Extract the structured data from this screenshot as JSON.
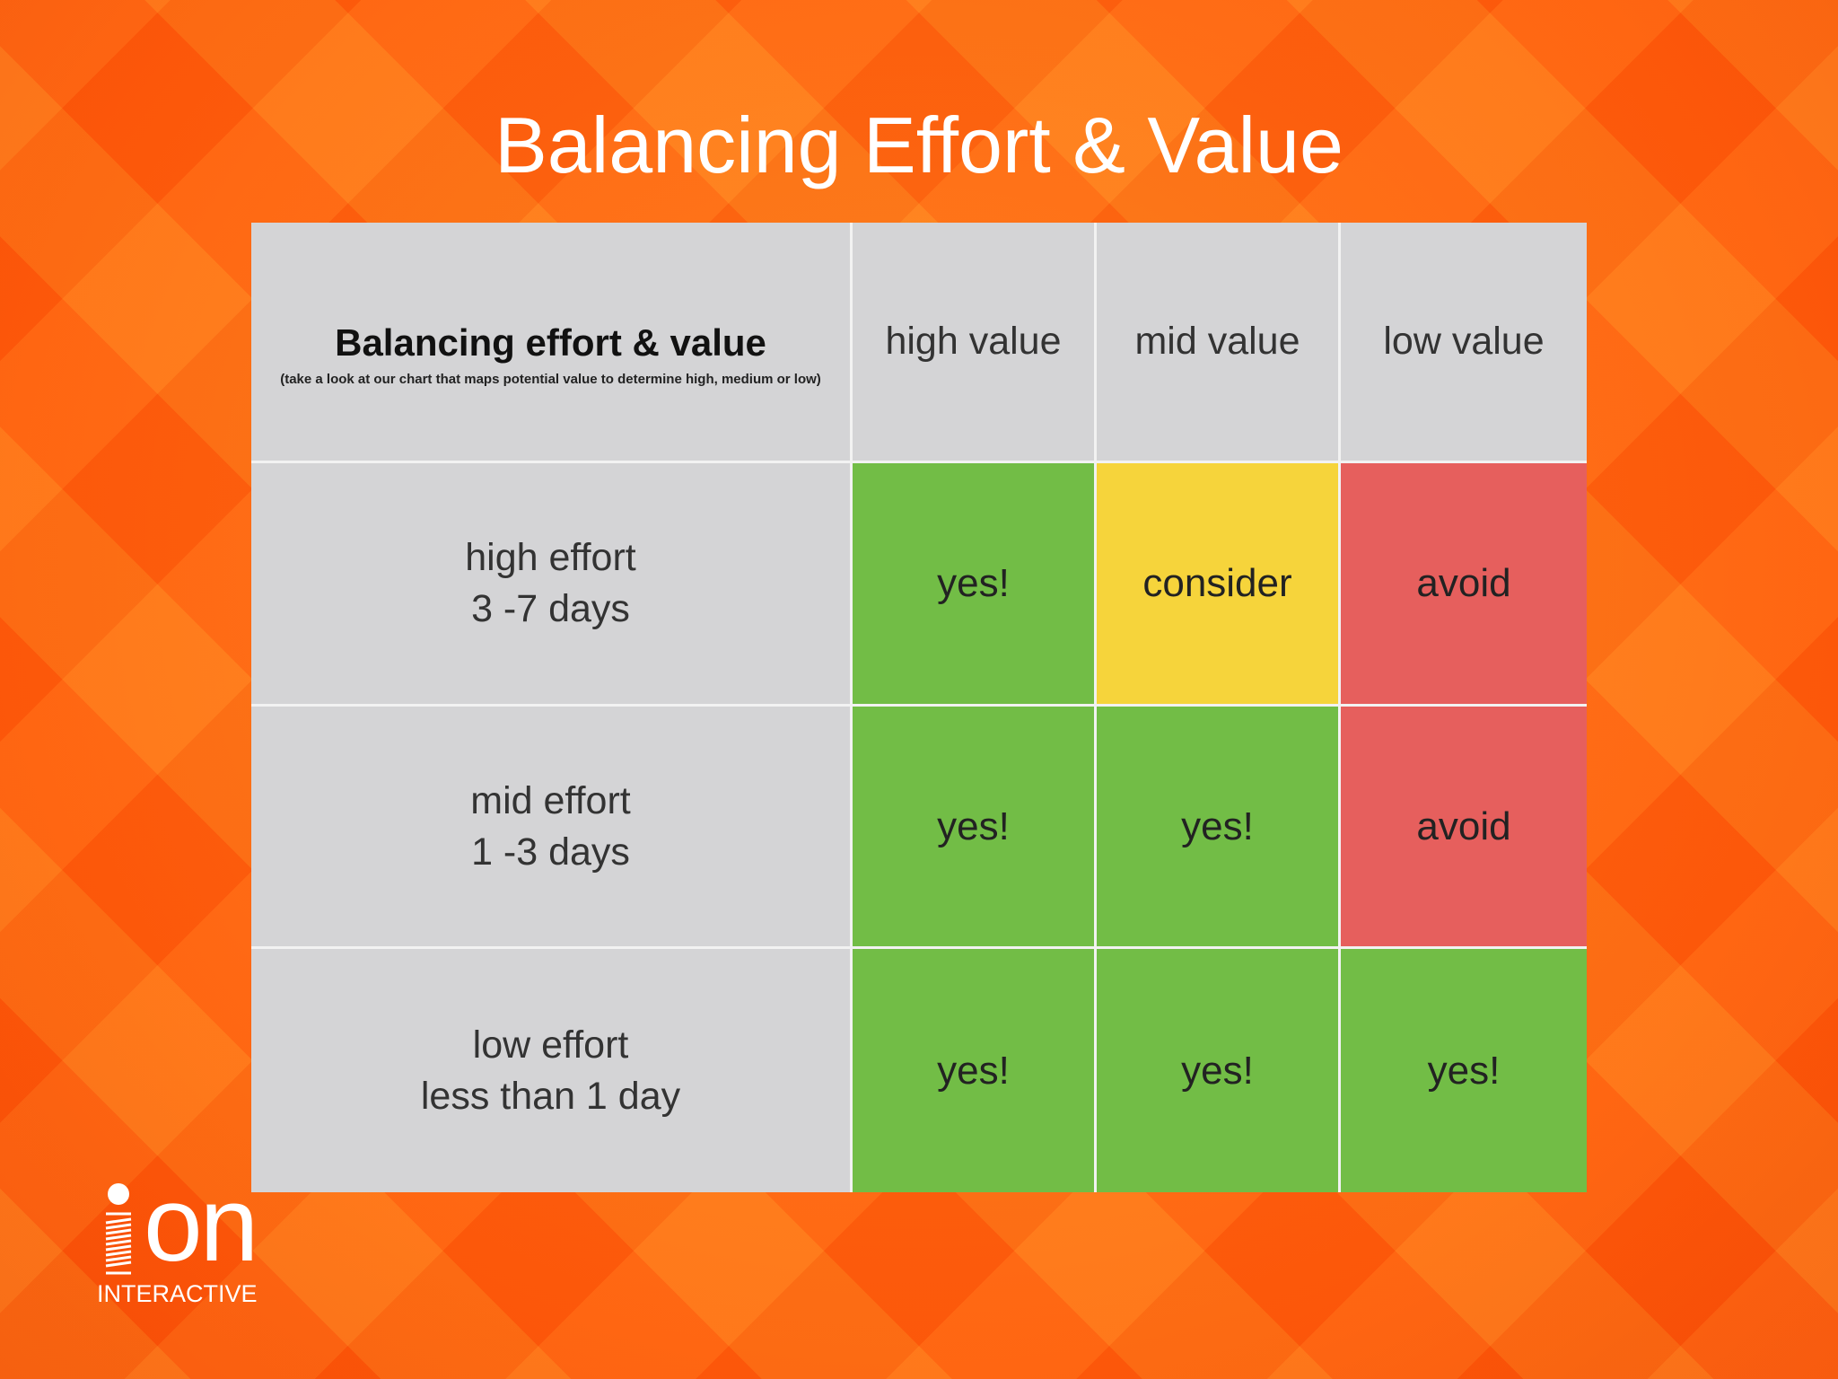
{
  "slide": {
    "title": "Balancing Effort & Value"
  },
  "matrix": {
    "corner_title": "Balancing effort & value",
    "corner_note": "(take a look at our chart that maps potential value to determine high, medium or low)",
    "value_headers": [
      "high value",
      "mid value",
      "low value"
    ],
    "rows": [
      {
        "effort": "high effort",
        "duration": "3 -7 days",
        "cells": [
          {
            "text": "yes!",
            "status": "green"
          },
          {
            "text": "consider",
            "status": "yellow"
          },
          {
            "text": "avoid",
            "status": "red"
          }
        ]
      },
      {
        "effort": "mid effort",
        "duration": "1 -3 days",
        "cells": [
          {
            "text": "yes!",
            "status": "green"
          },
          {
            "text": "yes!",
            "status": "green"
          },
          {
            "text": "avoid",
            "status": "red"
          }
        ]
      },
      {
        "effort": "low effort",
        "duration": "less than 1 day",
        "cells": [
          {
            "text": "yes!",
            "status": "green"
          },
          {
            "text": "yes!",
            "status": "green"
          },
          {
            "text": "yes!",
            "status": "green"
          }
        ]
      }
    ],
    "colors": {
      "green": "#72bd46",
      "yellow": "#f6d43b",
      "red": "#e65f5d",
      "header_grey": "#d4d4d6"
    }
  },
  "logo": {
    "word": "on",
    "sub": "INTERACTIVE"
  }
}
